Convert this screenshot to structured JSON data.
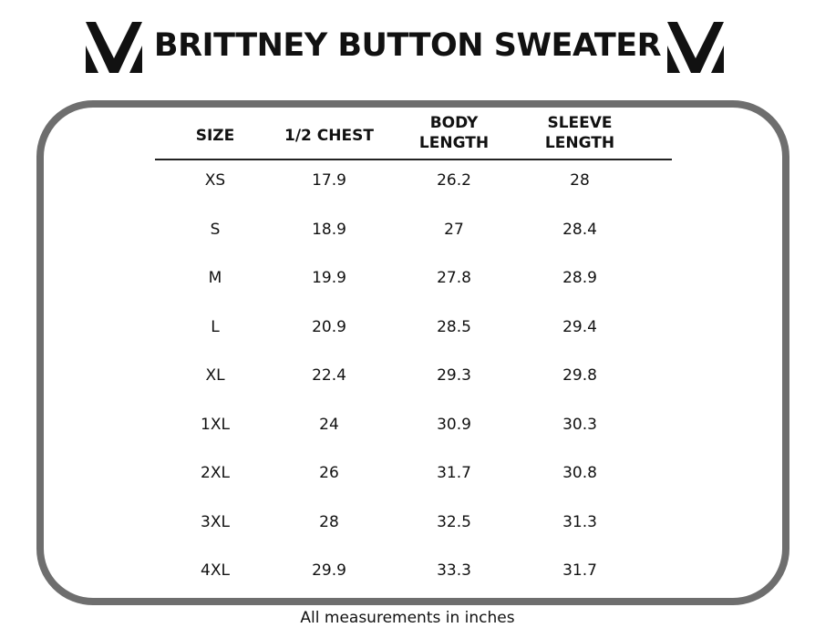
{
  "header": {
    "title": "BRITTNEY BUTTON SWEATER"
  },
  "table": {
    "columns": [
      "SIZE",
      "1/2 CHEST",
      "BODY LENGTH",
      "SLEEVE LENGTH"
    ],
    "rows": [
      [
        "XS",
        17.9,
        26.2,
        28
      ],
      [
        "S",
        18.9,
        27,
        28.4
      ],
      [
        "M",
        19.9,
        27.8,
        28.9
      ],
      [
        "L",
        20.9,
        28.5,
        29.4
      ],
      [
        "XL",
        22.4,
        29.3,
        29.8
      ],
      [
        "1XL",
        24,
        30.9,
        30.3
      ],
      [
        "2XL",
        26,
        31.7,
        30.8
      ],
      [
        "3XL",
        28,
        32.5,
        31.3
      ],
      [
        "4XL",
        29.9,
        33.3,
        31.7
      ]
    ]
  },
  "footer": {
    "note": "All measurements in inches"
  }
}
